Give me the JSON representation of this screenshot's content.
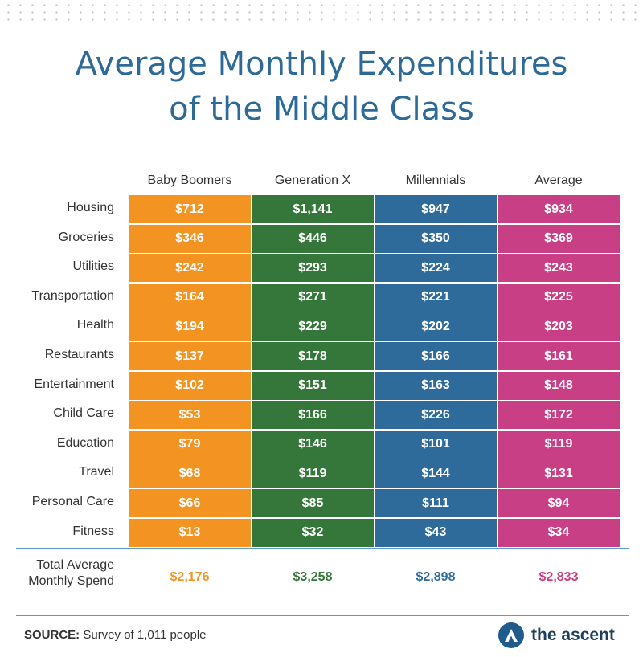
{
  "chart_data": {
    "type": "table",
    "title": "Average Monthly Expenditures of the Middle Class",
    "columns": [
      "Baby Boomers",
      "Generation X",
      "Millennials",
      "Average"
    ],
    "column_colors": [
      "#f39321",
      "#35763a",
      "#2e6b9a",
      "#c93f85"
    ],
    "rows": [
      {
        "label": "Housing",
        "values": [
          "$712",
          "$1,141",
          "$947",
          "$934"
        ]
      },
      {
        "label": "Groceries",
        "values": [
          "$346",
          "$446",
          "$350",
          "$369"
        ]
      },
      {
        "label": "Utilities",
        "values": [
          "$242",
          "$293",
          "$224",
          "$243"
        ]
      },
      {
        "label": "Transportation",
        "values": [
          "$164",
          "$271",
          "$221",
          "$225"
        ]
      },
      {
        "label": "Health",
        "values": [
          "$194",
          "$229",
          "$202",
          "$203"
        ]
      },
      {
        "label": "Restaurants",
        "values": [
          "$137",
          "$178",
          "$166",
          "$161"
        ]
      },
      {
        "label": "Entertainment",
        "values": [
          "$102",
          "$151",
          "$163",
          "$148"
        ]
      },
      {
        "label": "Child Care",
        "values": [
          "$53",
          "$166",
          "$226",
          "$172"
        ]
      },
      {
        "label": "Education",
        "values": [
          "$79",
          "$146",
          "$101",
          "$119"
        ]
      },
      {
        "label": "Travel",
        "values": [
          "$68",
          "$119",
          "$144",
          "$131"
        ]
      },
      {
        "label": "Personal Care",
        "values": [
          "$66",
          "$85",
          "$111",
          "$94"
        ]
      },
      {
        "label": "Fitness",
        "values": [
          "$13",
          "$32",
          "$43",
          "$34"
        ]
      }
    ],
    "total": {
      "label_line1": "Total Average",
      "label_line2": "Monthly Spend",
      "values": [
        "$2,176",
        "$3,258",
        "$2,898",
        "$2,833"
      ]
    }
  },
  "title_line1": "Average Monthly Expenditures",
  "title_line2": "of the Middle Class",
  "source": {
    "label": "SOURCE:",
    "text": "Survey of 1,011 people"
  },
  "logo": {
    "text": "the ascent",
    "icon": "ascent-logo-icon"
  }
}
